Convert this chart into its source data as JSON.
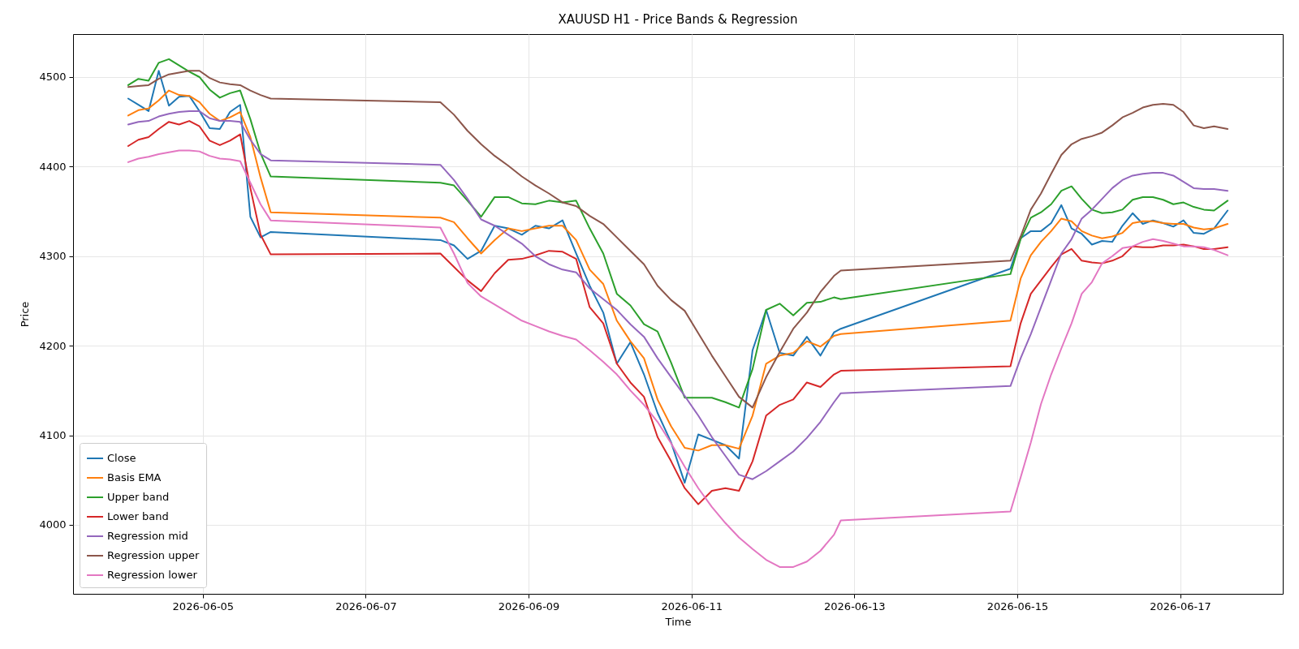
{
  "chart_data": {
    "type": "line",
    "title": "XAUUSD H1 - Price Bands & Regression",
    "xlabel": "Time",
    "ylabel": "Price",
    "x": [
      "2026-06-04T02:00",
      "2026-06-04T05:00",
      "2026-06-04T08:00",
      "2026-06-04T11:00",
      "2026-06-04T14:00",
      "2026-06-04T17:00",
      "2026-06-04T20:00",
      "2026-06-04T23:00",
      "2026-06-05T02:00",
      "2026-06-05T05:00",
      "2026-06-05T08:00",
      "2026-06-05T11:00",
      "2026-06-05T14:00",
      "2026-06-05T17:00",
      "2026-06-05T20:00",
      "2026-06-07T22:00",
      "2026-06-08T02:00",
      "2026-06-08T06:00",
      "2026-06-08T10:00",
      "2026-06-08T14:00",
      "2026-06-08T18:00",
      "2026-06-08T22:00",
      "2026-06-09T02:00",
      "2026-06-09T06:00",
      "2026-06-09T10:00",
      "2026-06-09T14:00",
      "2026-06-09T18:00",
      "2026-06-09T22:00",
      "2026-06-10T02:00",
      "2026-06-10T06:00",
      "2026-06-10T10:00",
      "2026-06-10T14:00",
      "2026-06-10T18:00",
      "2026-06-10T22:00",
      "2026-06-11T02:00",
      "2026-06-11T06:00",
      "2026-06-11T10:00",
      "2026-06-11T14:00",
      "2026-06-11T18:00",
      "2026-06-11T22:00",
      "2026-06-12T02:00",
      "2026-06-12T06:00",
      "2026-06-12T10:00",
      "2026-06-12T14:00",
      "2026-06-12T18:00",
      "2026-06-12T20:00",
      "2026-06-14T22:00",
      "2026-06-15T01:00",
      "2026-06-15T04:00",
      "2026-06-15T07:00",
      "2026-06-15T10:00",
      "2026-06-15T13:00",
      "2026-06-15T16:00",
      "2026-06-15T19:00",
      "2026-06-15T22:00",
      "2026-06-16T01:00",
      "2026-06-16T04:00",
      "2026-06-16T07:00",
      "2026-06-16T10:00",
      "2026-06-16T13:00",
      "2026-06-16T16:00",
      "2026-06-16T19:00",
      "2026-06-16T22:00",
      "2026-06-17T01:00",
      "2026-06-17T04:00",
      "2026-06-17T07:00",
      "2026-06-17T10:00",
      "2026-06-17T14:00"
    ],
    "series": [
      {
        "name": "Close",
        "color": "#1f77b4",
        "values": [
          4476,
          4469,
          4462,
          4507,
          4468,
          4478,
          4479,
          4462,
          4443,
          4442,
          4461,
          4469,
          4344,
          4321,
          4327,
          4318,
          4312,
          4297,
          4306,
          4334,
          4331,
          4324,
          4334,
          4331,
          4340,
          4303,
          4267,
          4237,
          4180,
          4204,
          4168,
          4125,
          4092,
          4047,
          4101,
          4095,
          4089,
          4074,
          4195,
          4240,
          4192,
          4189,
          4210,
          4189,
          4215,
          4219,
          4286,
          4320,
          4328,
          4328,
          4337,
          4357,
          4331,
          4325,
          4313,
          4317,
          4316,
          4334,
          4348,
          4336,
          4340,
          4337,
          4333,
          4340,
          4326,
          4325,
          4331,
          4351
        ]
      },
      {
        "name": "Basis EMA",
        "color": "#ff7f0e",
        "values": [
          4457,
          4463,
          4465,
          4474,
          4485,
          4480,
          4479,
          4472,
          4459,
          4451,
          4455,
          4461,
          4433,
          4388,
          4349,
          4343,
          4338,
          4320,
          4303,
          4318,
          4331,
          4328,
          4331,
          4334,
          4334,
          4318,
          4285,
          4269,
          4228,
          4205,
          4186,
          4140,
          4110,
          4086,
          4083,
          4089,
          4089,
          4085,
          4122,
          4180,
          4189,
          4192,
          4205,
          4199,
          4211,
          4213,
          4228,
          4275,
          4301,
          4316,
          4328,
          4342,
          4339,
          4328,
          4323,
          4320,
          4322,
          4326,
          4337,
          4339,
          4339,
          4337,
          4336,
          4336,
          4332,
          4330,
          4331,
          4336
        ]
      },
      {
        "name": "Upper band",
        "color": "#2ca02c",
        "values": [
          4491,
          4498,
          4496,
          4516,
          4520,
          4513,
          4506,
          4500,
          4486,
          4477,
          4482,
          4485,
          4453,
          4415,
          4389,
          4382,
          4379,
          4362,
          4344,
          4366,
          4366,
          4359,
          4358,
          4362,
          4360,
          4362,
          4331,
          4303,
          4258,
          4245,
          4224,
          4216,
          4181,
          4142,
          4142,
          4142,
          4137,
          4131,
          4174,
          4240,
          4247,
          4234,
          4248,
          4249,
          4254,
          4252,
          4280,
          4319,
          4343,
          4349,
          4358,
          4373,
          4378,
          4364,
          4352,
          4348,
          4349,
          4352,
          4363,
          4366,
          4366,
          4363,
          4358,
          4360,
          4355,
          4352,
          4351,
          4362
        ]
      },
      {
        "name": "Lower band",
        "color": "#d62728",
        "values": [
          4423,
          4430,
          4433,
          4442,
          4450,
          4447,
          4451,
          4445,
          4429,
          4424,
          4429,
          4436,
          4376,
          4324,
          4302,
          4303,
          4288,
          4273,
          4261,
          4281,
          4296,
          4297,
          4301,
          4306,
          4305,
          4297,
          4243,
          4225,
          4180,
          4159,
          4143,
          4098,
          4071,
          4041,
          4023,
          4038,
          4041,
          4038,
          4071,
          4122,
          4134,
          4140,
          4159,
          4154,
          4168,
          4172,
          4177,
          4225,
          4258,
          4273,
          4288,
          4302,
          4308,
          4295,
          4293,
          4292,
          4295,
          4300,
          4311,
          4310,
          4310,
          4312,
          4312,
          4313,
          4311,
          4308,
          4308,
          4310
        ]
      },
      {
        "name": "Regression mid",
        "color": "#9467bd",
        "values": [
          4447,
          4450,
          4451,
          4456,
          4459,
          4461,
          4462,
          4462,
          4454,
          4451,
          4451,
          4450,
          4430,
          4414,
          4407,
          4402,
          4385,
          4364,
          4341,
          4334,
          4324,
          4314,
          4300,
          4291,
          4285,
          4282,
          4264,
          4252,
          4240,
          4224,
          4210,
          4186,
          4165,
          4144,
          4122,
          4098,
          4077,
          4056,
          4051,
          4060,
          4071,
          4082,
          4097,
          4115,
          4137,
          4147,
          4155,
          4186,
          4213,
          4243,
          4273,
          4303,
          4319,
          4342,
          4352,
          4364,
          4376,
          4385,
          4390,
          4392,
          4393,
          4393,
          4390,
          4383,
          4376,
          4375,
          4375,
          4373
        ]
      },
      {
        "name": "Regression upper",
        "color": "#8c564b",
        "values": [
          4489,
          4490,
          4491,
          4498,
          4503,
          4505,
          4507,
          4507,
          4499,
          4494,
          4492,
          4491,
          4485,
          4480,
          4476,
          4472,
          4458,
          4440,
          4425,
          4412,
          4401,
          4389,
          4379,
          4370,
          4360,
          4356,
          4345,
          4336,
          4321,
          4306,
          4291,
          4267,
          4251,
          4239,
          4214,
          4189,
          4166,
          4143,
          4131,
          4165,
          4193,
          4219,
          4237,
          4260,
          4278,
          4284,
          4295,
          4322,
          4352,
          4370,
          4392,
          4413,
          4425,
          4431,
          4434,
          4438,
          4446,
          4455,
          4460,
          4466,
          4469,
          4470,
          4469,
          4461,
          4446,
          4443,
          4445,
          4442
        ]
      },
      {
        "name": "Regression lower",
        "color": "#e377c2",
        "values": [
          4405,
          4409,
          4411,
          4414,
          4416,
          4418,
          4418,
          4417,
          4412,
          4409,
          4408,
          4406,
          4382,
          4358,
          4340,
          4332,
          4303,
          4270,
          4255,
          4246,
          4237,
          4228,
          4222,
          4216,
          4211,
          4207,
          4195,
          4182,
          4168,
          4150,
          4134,
          4115,
          4091,
          4065,
          4041,
          4020,
          4002,
          3986,
          3973,
          3961,
          3953,
          3953,
          3959,
          3971,
          3989,
          4005,
          4015,
          4053,
          4092,
          4135,
          4168,
          4197,
          4225,
          4258,
          4271,
          4292,
          4300,
          4309,
          4311,
          4316,
          4319,
          4317,
          4314,
          4311,
          4311,
          4310,
          4307,
          4301
        ]
      }
    ],
    "xlim": [
      "2026-06-03T09:45",
      "2026-06-18T06:15"
    ],
    "xticks": [
      "2026-06-05",
      "2026-06-07",
      "2026-06-09",
      "2026-06-11",
      "2026-06-13",
      "2026-06-15",
      "2026-06-17"
    ],
    "ylim": [
      3923,
      4548
    ],
    "yticks": [
      4000,
      4100,
      4200,
      4300,
      4400,
      4500
    ],
    "grid": true,
    "legend": "bottom left"
  }
}
